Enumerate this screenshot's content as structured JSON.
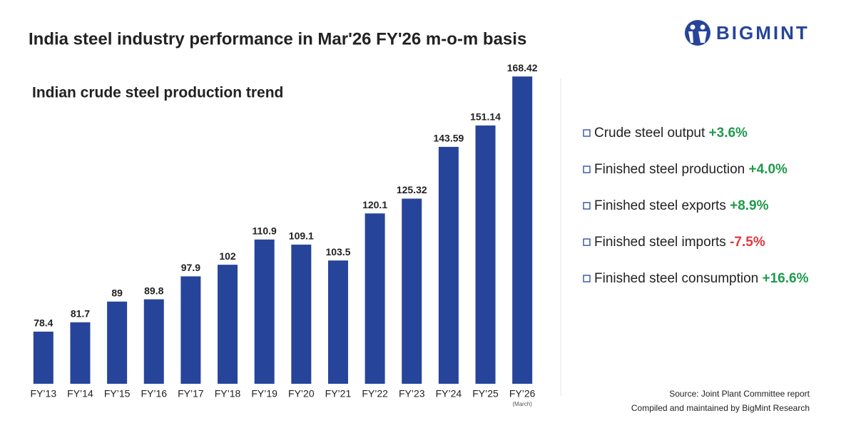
{
  "title": "India steel industry performance in Mar'26  FY'26 m-o-m basis",
  "brand": "BIGMINT",
  "chart_data": {
    "type": "bar",
    "title": "Indian crude steel production trend",
    "categories": [
      "FY’13",
      "FY’14",
      "FY’15",
      "FY’16",
      "FY’17",
      "FY’18",
      "FY’19",
      "FY’20",
      "FY’21",
      "FY’22",
      "FY’23",
      "FY’24",
      "FY’25",
      "FY’26"
    ],
    "category_note": "(March)",
    "values": [
      78.4,
      81.7,
      89,
      89.8,
      97.9,
      102,
      110.9,
      109.1,
      103.5,
      120.1,
      125.32,
      143.59,
      151.14,
      168.42
    ],
    "color": "#26449a",
    "ylim": [
      60,
      172
    ]
  },
  "highlights": [
    {
      "label": "Crude steel output",
      "value": "+3.6%",
      "color": "#1e9a4b"
    },
    {
      "label": "Finished steel production",
      "value": "+4.0%",
      "color": "#1e9a4b"
    },
    {
      "label": "Finished steel exports",
      "value": "+8.9%",
      "color": "#1e9a4b"
    },
    {
      "label": "Finished steel imports",
      "value": "-7.5%",
      "color": "#e0393e"
    },
    {
      "label": "Finished steel consumption",
      "value": "+16.6%",
      "color": "#1e9a4b"
    }
  ],
  "source": "Source: Joint Plant Committee report",
  "compiled": "Compiled and maintained by BigMint Research"
}
